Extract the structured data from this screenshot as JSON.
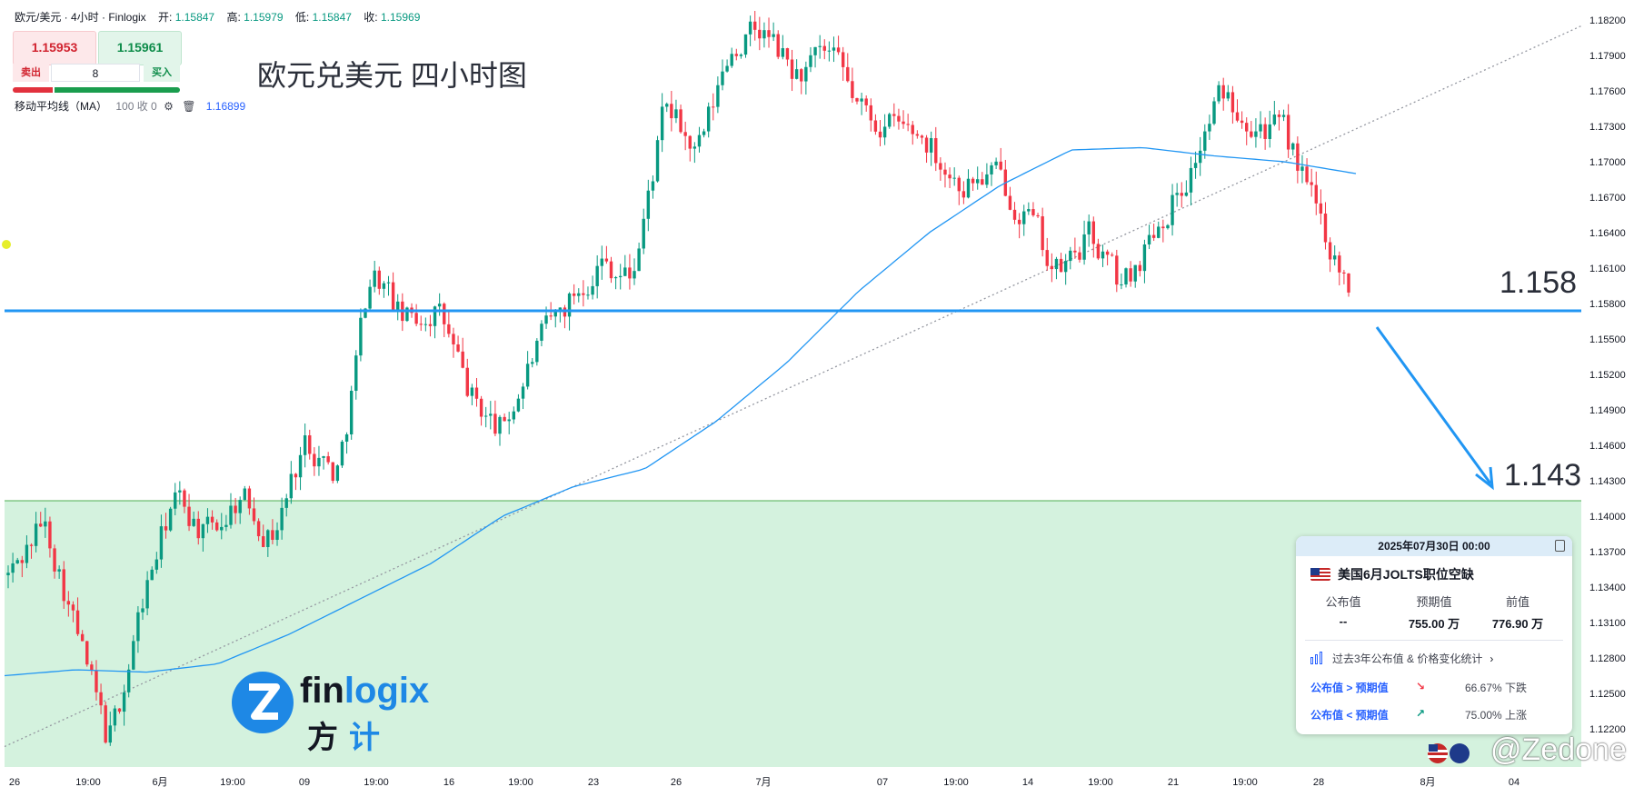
{
  "header": {
    "symbol": "欧元/美元 · 4小时 · Finlogix",
    "open_label": "开:",
    "open": "1.15847",
    "high_label": "高:",
    "high": "1.15979",
    "low_label": "低:",
    "low": "1.15847",
    "close_label": "收:",
    "close": "1.15969"
  },
  "trade_panel": {
    "bid": "1.15953",
    "ask": "1.15961",
    "sell_label": "卖出",
    "buy_label": "买入",
    "quantity": "8"
  },
  "indicator": {
    "name": "移动平均线（MA）",
    "params": "100 收 0",
    "value": "1.16899"
  },
  "chart_title": "欧元兑美元 四小时图",
  "levels": {
    "support": "1.158",
    "target": "1.143"
  },
  "logo": {
    "en_a": "fin",
    "en_b": "logix",
    "cn_a": "方",
    "cn_b": "计"
  },
  "watermark": "@Zedone",
  "event_card": {
    "datetime": "2025年07月30日 00:00",
    "title": "美国6月JOLTS职位空缺",
    "col_actual": "公布值",
    "col_forecast": "预期值",
    "col_previous": "前值",
    "actual": "--",
    "forecast": "755.00 万",
    "previous": "776.90 万",
    "stats_link": "过去3年公布值 & 价格变化统计",
    "row1_label": "公布值 > 预期值",
    "row1_value": "66.67% 下跌",
    "row2_label": "公布值 < 预期值",
    "row2_value": "75.00% 上涨"
  },
  "colors": {
    "up": "#089981",
    "down": "#f23645",
    "ma": "#2196f3",
    "support_line": "#2196f3",
    "zone": "#d4f2de",
    "logo_blue": "#1e88e5"
  },
  "chart_data": {
    "type": "candlestick",
    "title": "欧元兑美元 四小时图",
    "ylim": [
      1.12,
      1.182
    ],
    "y_ticks": [
      "1.18200",
      "1.17900",
      "1.17600",
      "1.17300",
      "1.17000",
      "1.16700",
      "1.16400",
      "1.16100",
      "1.15800",
      "1.15500",
      "1.15200",
      "1.14900",
      "1.14600",
      "1.14300",
      "1.14000",
      "1.13700",
      "1.13400",
      "1.13100",
      "1.12800",
      "1.12500",
      "1.12200"
    ],
    "x_ticks": [
      "26",
      "19:00",
      "6月",
      "19:00",
      "09",
      "19:00",
      "16",
      "19:00",
      "23",
      "26",
      "7月",
      "07",
      "19:00",
      "14",
      "19:00",
      "21",
      "19:00",
      "28",
      "8月",
      "04"
    ],
    "horizontal_lines": {
      "support": 1.158,
      "zone_top": 1.1425
    },
    "projection_target": 1.143,
    "trendline": {
      "from": 1.1205,
      "to": 1.1815
    },
    "ma_period": 100,
    "ma_anchors": [
      1.1265,
      1.127,
      1.1268,
      1.1275,
      1.13,
      1.133,
      1.136,
      1.14,
      1.1425,
      1.144,
      1.148,
      1.153,
      1.159,
      1.164,
      1.168,
      1.171,
      1.1712,
      1.1705,
      1.17,
      1.169
    ],
    "price_anchors": [
      1.135,
      1.14,
      1.13,
      1.12,
      1.133,
      1.142,
      1.138,
      1.142,
      1.138,
      1.147,
      1.143,
      1.162,
      1.156,
      1.158,
      1.15,
      1.147,
      1.154,
      1.158,
      1.162,
      1.16,
      1.175,
      1.17,
      1.18,
      1.181,
      1.177,
      1.179,
      1.174,
      1.173,
      1.172,
      1.168,
      1.169,
      1.166,
      1.16,
      1.164,
      1.159,
      1.165,
      1.169,
      1.176,
      1.174,
      1.172,
      1.165,
      1.159
    ]
  }
}
